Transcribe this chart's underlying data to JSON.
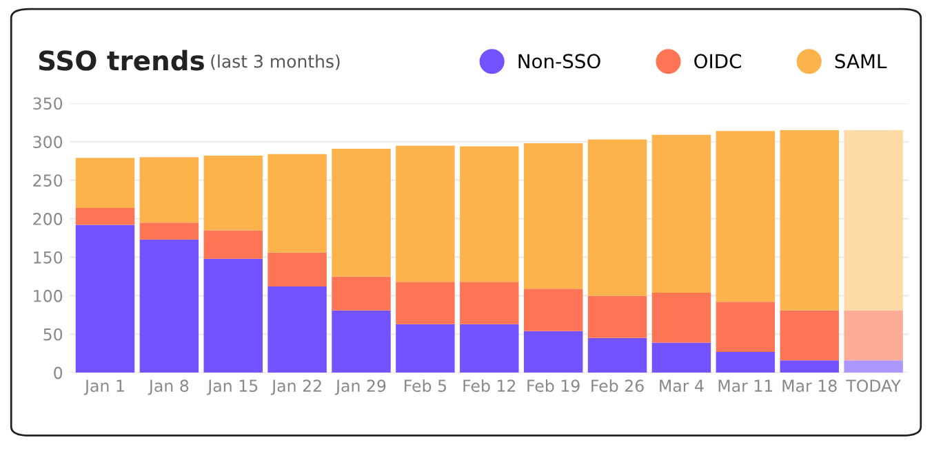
{
  "chart_data": {
    "type": "bar",
    "title": "SSO trends",
    "subtitle": "(last 3 months)",
    "stacked": true,
    "categories": [
      "Jan 1",
      "Jan 8",
      "Jan 15",
      "Jan 22",
      "Jan 29",
      "Feb 5",
      "Feb 12",
      "Feb 19",
      "Feb 26",
      "Mar 4",
      "Mar 11",
      "Mar 18",
      "TODAY"
    ],
    "series": [
      {
        "name": "Non-SSO",
        "color": "#7452ff",
        "colors": [
          "#7452ff",
          "#7452ff",
          "#7452ff",
          "#7452ff",
          "#7452ff",
          "#7452ff",
          "#7452ff",
          "#7452ff",
          "#7452ff",
          "#7452ff",
          "#7452ff",
          "#7452ff",
          "#ab97ff"
        ],
        "values": [
          192,
          173,
          148,
          112,
          81,
          63,
          63,
          54,
          45,
          39,
          27,
          16,
          16
        ]
      },
      {
        "name": "OIDC",
        "color": "#fd7555",
        "colors": [
          "#fd7555",
          "#fd7555",
          "#fd7555",
          "#fd7555",
          "#fd7555",
          "#fd7555",
          "#fd7555",
          "#fd7555",
          "#fd7555",
          "#fd7555",
          "#fd7555",
          "#fd7555",
          "#feab97"
        ],
        "values": [
          22,
          22,
          37,
          44,
          44,
          55,
          55,
          55,
          55,
          65,
          65,
          65,
          65
        ]
      },
      {
        "name": "SAML",
        "color": "#fdb34c",
        "colors": [
          "#fdb34c",
          "#fdb34c",
          "#fdb34c",
          "#fdb34c",
          "#fdb34c",
          "#fdb34c",
          "#fdb34c",
          "#fdb34c",
          "#fdb34c",
          "#fdb34c",
          "#fdb34c",
          "#fdb34c",
          "#fedaa6"
        ],
        "values": [
          65,
          85,
          97,
          128,
          166,
          177,
          176,
          189,
          203,
          205,
          222,
          234,
          234
        ]
      }
    ],
    "ylim": [
      0,
      350
    ],
    "yticks": [
      0,
      50,
      100,
      150,
      200,
      250,
      300,
      350
    ],
    "grid": "y",
    "legend": "top right",
    "marker": "circle"
  }
}
